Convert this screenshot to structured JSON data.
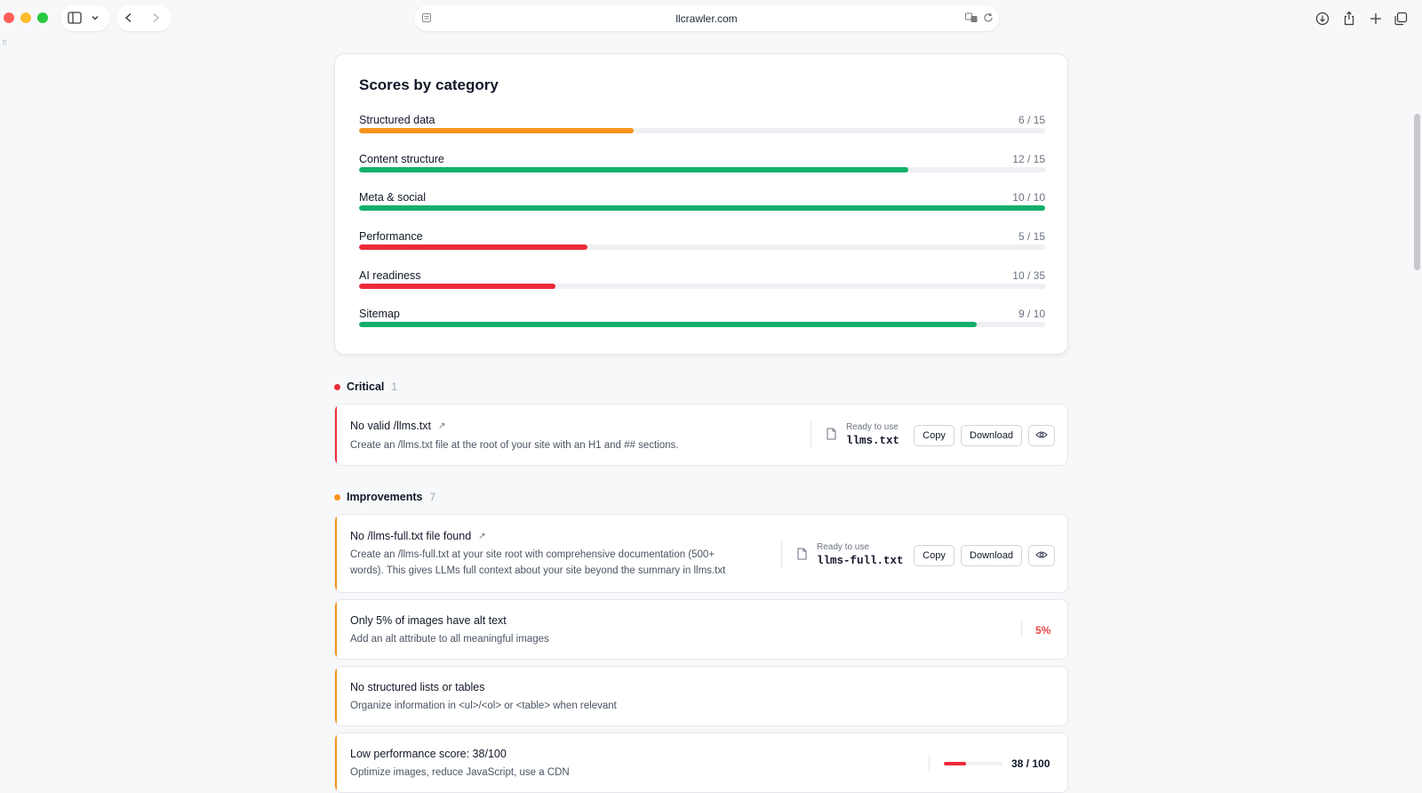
{
  "browser": {
    "url": "llcrawler.com"
  },
  "scores": {
    "title": "Scores by category",
    "categories": [
      {
        "label": "Structured data",
        "value": "6 / 15",
        "fraction": 0.4,
        "color": "#f7931e"
      },
      {
        "label": "Content structure",
        "value": "12 / 15",
        "fraction": 0.8,
        "color": "#12b06a"
      },
      {
        "label": "Meta & social",
        "value": "10 / 10",
        "fraction": 1.0,
        "color": "#12b06a"
      },
      {
        "label": "Performance",
        "value": "5 / 15",
        "fraction": 0.333,
        "color": "#ef2b3a"
      },
      {
        "label": "AI readiness",
        "value": "10 / 35",
        "fraction": 0.2857,
        "color": "#ef2b3a"
      },
      {
        "label": "Sitemap",
        "value": "9 / 10",
        "fraction": 0.9,
        "color": "#12b06a"
      }
    ]
  },
  "critical": {
    "label": "Critical",
    "count": "1",
    "color": "#ef2b3a",
    "items": [
      {
        "title": "No valid /llms.txt",
        "desc": "Create an /llms.txt file at the root of your site with an H1 and ## sections.",
        "ready_label": "Ready to use",
        "file": "llms.txt",
        "copy": "Copy",
        "download": "Download"
      }
    ]
  },
  "improvements": {
    "label": "Improvements",
    "count": "7",
    "color": "#f7931e",
    "items": [
      {
        "title": "No /llms-full.txt file found",
        "desc_line1": "Create an /llms-full.txt at your site root with comprehensive documentation (500+",
        "desc_line2": "words). This gives LLMs full context about your site beyond the summary in llms.txt",
        "ready_label": "Ready to use",
        "file": "llms-full.txt",
        "copy": "Copy",
        "download": "Download"
      },
      {
        "title": "Only 5% of images have alt text",
        "desc": "Add an alt attribute to all meaningful images",
        "metric": "5%"
      },
      {
        "title": "No structured lists or tables",
        "desc": "Organize information in <ul>/<ol> or <table> when relevant"
      },
      {
        "title": "Low performance score: 38/100",
        "desc": "Optimize images, reduce JavaScript, use a CDN",
        "metric": "38 / 100",
        "metric_fraction": 0.38
      }
    ]
  }
}
